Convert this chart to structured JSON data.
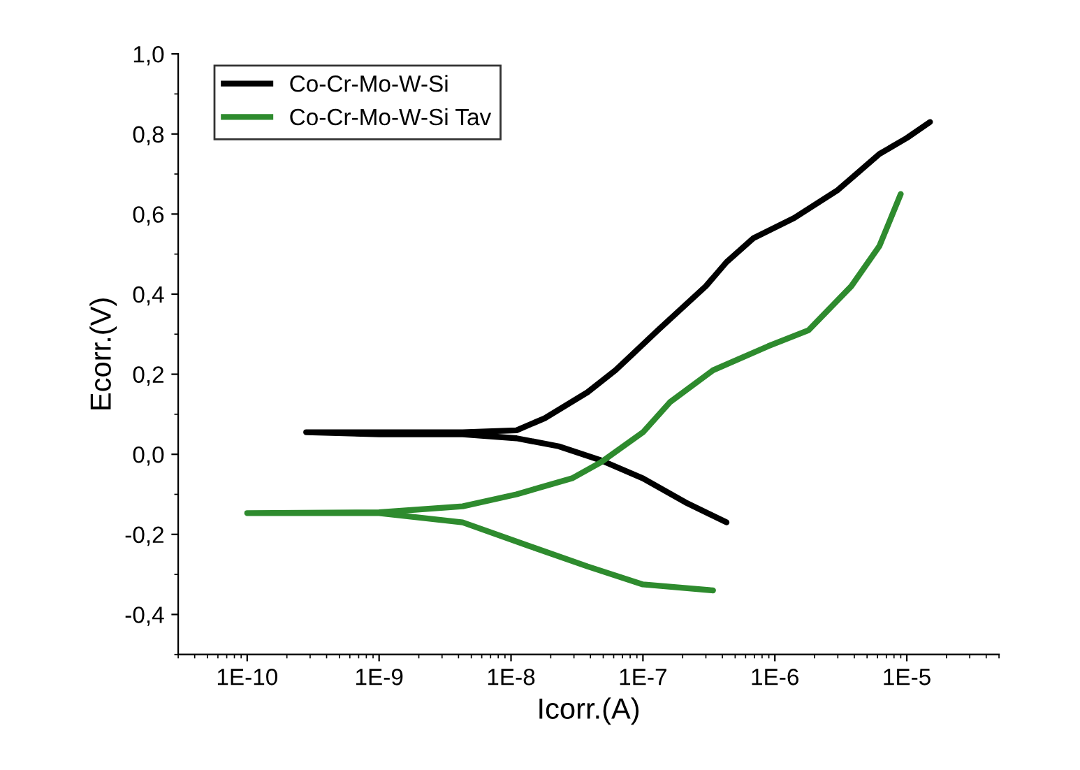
{
  "chart_data": {
    "type": "line",
    "xlabel": "Icorr.(A)",
    "ylabel": "Ecorr.(V)",
    "log": "x",
    "legend": "top left",
    "grid": false,
    "marker": "none",
    "line_style": "solid",
    "xlim": [
      3e-11,
      5e-05
    ],
    "ylim": [
      -0.5,
      1.0
    ],
    "xticks": [
      {
        "value": 1e-10,
        "label": "1E-10"
      },
      {
        "value": 1e-09,
        "label": "1E-9"
      },
      {
        "value": 1e-08,
        "label": "1E-8"
      },
      {
        "value": 1e-07,
        "label": "1E-7"
      },
      {
        "value": 1e-06,
        "label": "1E-6"
      },
      {
        "value": 1e-05,
        "label": "1E-5"
      }
    ],
    "yticks": [
      {
        "value": -0.4,
        "label": "-0,4"
      },
      {
        "value": -0.2,
        "label": "-0,2"
      },
      {
        "value": 0.0,
        "label": "0,0"
      },
      {
        "value": 0.2,
        "label": "0,2"
      },
      {
        "value": 0.4,
        "label": "0,4"
      },
      {
        "value": 0.6,
        "label": "0,6"
      },
      {
        "value": 0.8,
        "label": "0,8"
      },
      {
        "value": 1.0,
        "label": "1,0"
      }
    ],
    "series": [
      {
        "name": "Co-Cr-Mo-W-Si",
        "color": "#000000",
        "x": [
          4.3e-07,
          2.1e-07,
          1e-07,
          4.8e-08,
          2.3e-08,
          1.1e-08,
          4.3e-09,
          1e-09,
          2.8e-10,
          1e-09,
          4.3e-09,
          1.1e-08,
          1.8e-08,
          3.8e-08,
          6.2e-08,
          1.3e-07,
          3e-07,
          4.3e-07,
          6.9e-07,
          1.4e-06,
          3e-06,
          6.2e-06,
          1e-05,
          1.5e-05
        ],
        "values": [
          -0.17,
          -0.12,
          -0.06,
          -0.015,
          0.02,
          0.04,
          0.05,
          0.05,
          0.055,
          0.055,
          0.055,
          0.06,
          0.09,
          0.155,
          0.21,
          0.31,
          0.42,
          0.48,
          0.54,
          0.59,
          0.66,
          0.75,
          0.79,
          0.83
        ]
      },
      {
        "name": "Co-Cr-Mo-W-Si Tav",
        "color": "#2e8b2e",
        "x": [
          3.4e-07,
          1e-07,
          3.8e-08,
          1.4e-08,
          4.3e-09,
          1e-09,
          1e-10,
          1e-09,
          4.3e-09,
          1.1e-08,
          2.9e-08,
          4.8e-08,
          1e-07,
          1.6e-07,
          3.4e-07,
          8.9e-07,
          1.8e-06,
          3.8e-06,
          6.2e-06,
          9e-06
        ],
        "values": [
          -0.34,
          -0.325,
          -0.28,
          -0.23,
          -0.17,
          -0.147,
          -0.147,
          -0.145,
          -0.13,
          -0.1,
          -0.06,
          -0.02,
          0.055,
          0.13,
          0.21,
          0.27,
          0.31,
          0.42,
          0.52,
          0.65
        ]
      }
    ]
  }
}
